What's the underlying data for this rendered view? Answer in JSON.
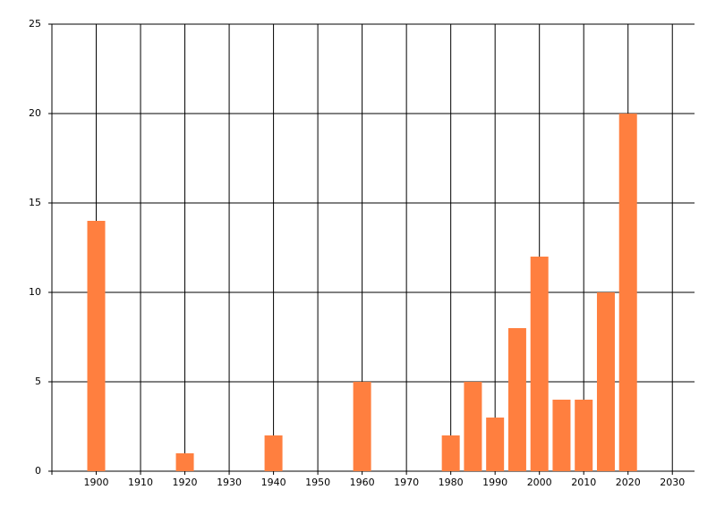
{
  "chart_data": {
    "type": "bar",
    "x": [
      1900,
      1920,
      1940,
      1960,
      1980,
      1985,
      1990,
      1995,
      2000,
      2005,
      2010,
      2015,
      2020
    ],
    "values": [
      14,
      1,
      2,
      5,
      2,
      5,
      3,
      8,
      12,
      4,
      4,
      10,
      20
    ],
    "color": "#ff7f3f",
    "xlim": [
      1890,
      2035
    ],
    "xticks": [
      1900,
      1910,
      1920,
      1930,
      1940,
      1950,
      1960,
      1970,
      1980,
      1990,
      2000,
      2010,
      2020,
      2030
    ],
    "ylim": [
      0,
      25
    ],
    "yticks": [
      0,
      5,
      10,
      15,
      20,
      25
    ],
    "grid": true
  }
}
